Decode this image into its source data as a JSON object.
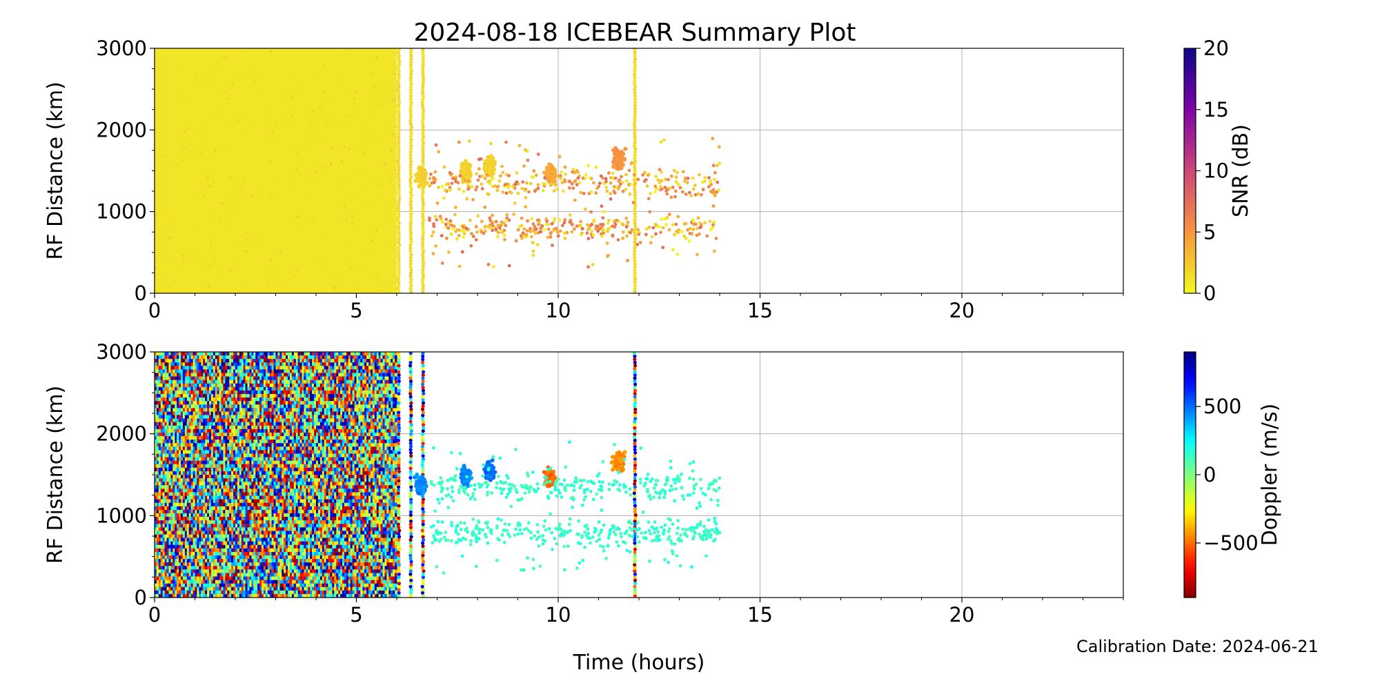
{
  "title": "2024-08-18 ICEBEAR Summary Plot",
  "calibration_label": "Calibration Date: 2024-06-21",
  "chart_data": [
    {
      "type": "scatter",
      "panel": "top",
      "xlabel": "",
      "ylabel": "RF Distance (km)",
      "xlim": [
        0,
        24
      ],
      "ylim": [
        0,
        3000
      ],
      "x_ticks": [
        0,
        5,
        10,
        15,
        20
      ],
      "y_ticks": [
        0,
        1000,
        2000,
        3000
      ],
      "grid": true,
      "colorbar": {
        "label": "SNR (dB)",
        "range": [
          0,
          20
        ],
        "ticks": [
          0,
          5,
          10,
          15,
          20
        ],
        "colormap": "plasma_r"
      },
      "features": [
        {
          "kind": "dense_band",
          "x_start": 0,
          "x_end": 6.0,
          "y_start": 0,
          "y_end": 3000,
          "value": 1
        },
        {
          "kind": "vertical_streak",
          "x": 6.05,
          "y_start": 0,
          "y_end": 3000,
          "value": 1
        },
        {
          "kind": "vertical_streak",
          "x": 6.35,
          "y_start": 0,
          "y_end": 3000,
          "value": 1
        },
        {
          "kind": "vertical_streak",
          "x": 6.65,
          "y_start": 0,
          "y_end": 3000,
          "value": 1
        },
        {
          "kind": "vertical_streak",
          "x": 11.9,
          "y_start": 0,
          "y_end": 3000,
          "value": 1
        },
        {
          "kind": "cluster",
          "x": 6.6,
          "y": 1420,
          "value": 2
        },
        {
          "kind": "cluster",
          "x": 7.7,
          "y": 1480,
          "value": 2
        },
        {
          "kind": "cluster",
          "x": 8.3,
          "y": 1550,
          "value": 2
        },
        {
          "kind": "cluster",
          "x": 9.8,
          "y": 1450,
          "value": 4
        },
        {
          "kind": "cluster",
          "x": 11.5,
          "y": 1650,
          "value": 5
        },
        {
          "kind": "scatter_region",
          "x_start": 6.8,
          "x_end": 14.0,
          "y_start": 300,
          "y_end": 1900,
          "value_range": [
            0,
            8
          ]
        }
      ]
    },
    {
      "type": "scatter",
      "panel": "bottom",
      "xlabel": "Time (hours)",
      "ylabel": "RF Distance (km)",
      "xlim": [
        0,
        24
      ],
      "ylim": [
        0,
        3000
      ],
      "x_ticks": [
        0,
        5,
        10,
        15,
        20
      ],
      "y_ticks": [
        0,
        1000,
        2000,
        3000
      ],
      "grid": true,
      "colorbar": {
        "label": "Doppler (m/s)",
        "range": [
          -900,
          900
        ],
        "ticks": [
          -500,
          0,
          500
        ],
        "tick_labels": [
          "−500",
          "0",
          "500"
        ],
        "colormap": "jet_r"
      },
      "features": [
        {
          "kind": "dense_band",
          "x_start": 0,
          "x_end": 6.0,
          "y_start": 0,
          "y_end": 3000,
          "value": "random"
        },
        {
          "kind": "vertical_streak",
          "x": 6.05,
          "y_start": 0,
          "y_end": 3000,
          "value": "random"
        },
        {
          "kind": "vertical_streak",
          "x": 6.35,
          "y_start": 0,
          "y_end": 3000,
          "value": "random"
        },
        {
          "kind": "vertical_streak",
          "x": 6.65,
          "y_start": 0,
          "y_end": 3000,
          "value": "random"
        },
        {
          "kind": "vertical_streak",
          "x": 11.9,
          "y_start": 0,
          "y_end": 3000,
          "value": "random"
        },
        {
          "kind": "cluster",
          "x": 6.6,
          "y": 1380,
          "value": 450
        },
        {
          "kind": "cluster",
          "x": 7.7,
          "y": 1480,
          "value": 450
        },
        {
          "kind": "cluster",
          "x": 8.3,
          "y": 1550,
          "value": 500
        },
        {
          "kind": "cluster",
          "x": 9.8,
          "y": 1450,
          "value": -500
        },
        {
          "kind": "cluster",
          "x": 11.5,
          "y": 1650,
          "value": -450
        },
        {
          "kind": "scatter_region",
          "x_start": 6.8,
          "x_end": 14.0,
          "y_start": 300,
          "y_end": 1900,
          "value_range": [
            100,
            200
          ]
        }
      ]
    }
  ]
}
